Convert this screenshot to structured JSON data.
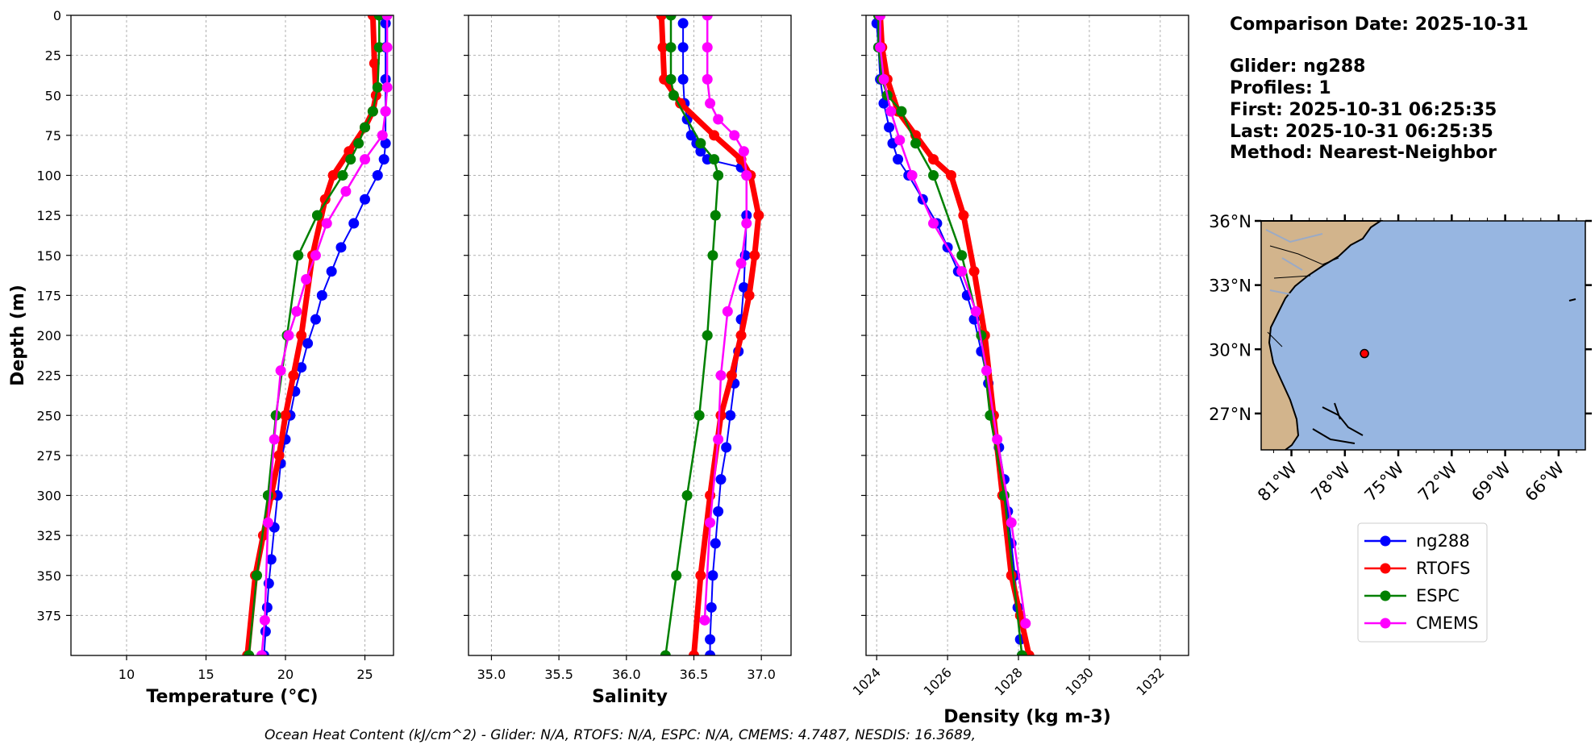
{
  "info": {
    "comparison_date": "Comparison Date: 2025-10-31",
    "glider": "Glider: ng288",
    "profiles": "Profiles: 1",
    "first": "First: 2025-10-31 06:25:35",
    "last": "Last: 2025-10-31 06:25:35",
    "method": "Method: Nearest-Neighbor"
  },
  "footer": "Ocean Heat Content (kJ/cm^2) - Glider: N/A,  RTOFS: N/A,  ESPC: N/A,  CMEMS: 4.7487,  NESDIS: 16.3689,",
  "colors": {
    "ng288": "#0000ff",
    "RTOFS": "#ff0000",
    "ESPC": "#008000",
    "CMEMS": "#ff00ff",
    "land": "#d2b48c",
    "ocean": "#97b6e1"
  },
  "legend": [
    "ng288",
    "RTOFS",
    "ESPC",
    "CMEMS"
  ],
  "map": {
    "lat_ticks": [
      "36°N",
      "33°N",
      "30°N",
      "27°N"
    ],
    "lon_ticks": [
      "81°W",
      "78°W",
      "75°W",
      "72°W",
      "69°W",
      "66°W"
    ],
    "glider_position": {
      "lon": -76.9,
      "lat": 29.8
    }
  },
  "chart_data": [
    {
      "type": "line",
      "xlabel": "Temperature (°C)",
      "ylabel": "Depth (m)",
      "xlim": [
        6.5,
        26.8
      ],
      "ylim": [
        400,
        0
      ],
      "xticks": [
        10,
        15,
        20,
        25
      ],
      "yticks": [
        0,
        25,
        50,
        75,
        100,
        125,
        150,
        175,
        200,
        225,
        250,
        275,
        300,
        325,
        350,
        375
      ],
      "grid": true,
      "series": [
        {
          "name": "ng288",
          "x": [
            26.3,
            26.3,
            26.3,
            26.3,
            26.3,
            26.2,
            25.8,
            25.0,
            24.3,
            23.5,
            22.9,
            22.3,
            21.9,
            21.4,
            21.0,
            20.6,
            20.3,
            20.0,
            19.7,
            19.5,
            19.3,
            19.1,
            18.95,
            18.85,
            18.75,
            18.65
          ],
          "y": [
            5,
            20,
            40,
            60,
            80,
            90,
            100,
            115,
            130,
            145,
            160,
            175,
            190,
            205,
            220,
            235,
            250,
            265,
            280,
            300,
            320,
            340,
            355,
            370,
            385,
            400
          ]
        },
        {
          "name": "RTOFS",
          "x": [
            25.5,
            25.6,
            25.7,
            25.5,
            25.0,
            24.0,
            23.0,
            22.5,
            21.7,
            21.0,
            20.5,
            20.0,
            19.6,
            19.1,
            18.6,
            18.1,
            17.6
          ],
          "y": [
            0,
            30,
            50,
            60,
            70,
            85,
            100,
            115,
            150,
            200,
            225,
            250,
            275,
            300,
            325,
            350,
            400
          ]
        },
        {
          "name": "ESPC",
          "x": [
            25.9,
            25.9,
            25.8,
            25.5,
            25.0,
            24.6,
            24.1,
            23.6,
            22.0,
            20.8,
            20.1,
            19.4,
            18.9,
            18.2,
            17.7
          ],
          "y": [
            0,
            20,
            45,
            60,
            70,
            80,
            90,
            100,
            125,
            150,
            200,
            250,
            300,
            350,
            400
          ]
        },
        {
          "name": "CMEMS",
          "x": [
            26.4,
            26.4,
            26.4,
            26.3,
            26.1,
            25.0,
            23.8,
            22.6,
            21.9,
            21.3,
            20.7,
            20.2,
            19.7,
            19.3,
            18.9,
            18.7,
            18.5
          ],
          "y": [
            0,
            20,
            45,
            60,
            75,
            90,
            110,
            130,
            150,
            165,
            185,
            200,
            222,
            265,
            317,
            378,
            400
          ]
        }
      ]
    },
    {
      "type": "line",
      "xlabel": "Salinity",
      "ylabel": "",
      "xlim": [
        34.83,
        37.22
      ],
      "ylim": [
        400,
        0
      ],
      "xticks": [
        35.0,
        35.5,
        36.0,
        36.5,
        37.0
      ],
      "grid": true,
      "series": [
        {
          "name": "ng288",
          "x": [
            36.42,
            36.42,
            36.42,
            36.43,
            36.45,
            36.48,
            36.52,
            36.55,
            36.6,
            36.85,
            36.89,
            36.89,
            36.88,
            36.87,
            36.85,
            36.83,
            36.8,
            36.77,
            36.74,
            36.7,
            36.68,
            36.66,
            36.64,
            36.63,
            36.62,
            36.62
          ],
          "y": [
            5,
            20,
            40,
            55,
            65,
            75,
            80,
            85,
            90,
            95,
            100,
            125,
            150,
            170,
            190,
            210,
            230,
            250,
            270,
            290,
            310,
            330,
            350,
            370,
            390,
            400
          ]
        },
        {
          "name": "RTOFS",
          "x": [
            36.26,
            36.27,
            36.28,
            36.4,
            36.65,
            36.85,
            36.92,
            36.98,
            36.95,
            36.91,
            36.85,
            36.78,
            36.7,
            36.62,
            36.55,
            36.5
          ],
          "y": [
            0,
            20,
            40,
            55,
            75,
            90,
            100,
            125,
            150,
            175,
            200,
            225,
            250,
            300,
            350,
            400
          ]
        },
        {
          "name": "ESPC",
          "x": [
            36.33,
            36.33,
            36.33,
            36.35,
            36.55,
            36.65,
            36.68,
            36.66,
            36.64,
            36.6,
            36.54,
            36.45,
            36.37,
            36.29
          ],
          "y": [
            0,
            20,
            40,
            50,
            80,
            90,
            100,
            125,
            150,
            200,
            250,
            300,
            350,
            400
          ]
        },
        {
          "name": "CMEMS",
          "x": [
            36.6,
            36.6,
            36.6,
            36.62,
            36.68,
            36.8,
            36.87,
            36.89,
            36.89,
            36.85,
            36.75,
            36.7,
            36.68,
            36.62,
            36.58
          ],
          "y": [
            0,
            20,
            40,
            55,
            65,
            75,
            85,
            100,
            130,
            155,
            185,
            225,
            265,
            317,
            378
          ]
        }
      ]
    },
    {
      "type": "line",
      "xlabel": "Density (kg m-3)",
      "ylabel": "",
      "xlim": [
        1023.7,
        1032.8
      ],
      "ylim": [
        400,
        0
      ],
      "xticks": [
        1024,
        1026,
        1028,
        1030,
        1032
      ],
      "grid": true,
      "series": [
        {
          "name": "ng288",
          "x": [
            1024.0,
            1024.05,
            1024.1,
            1024.2,
            1024.35,
            1024.45,
            1024.6,
            1024.9,
            1025.3,
            1025.7,
            1026.0,
            1026.3,
            1026.55,
            1026.75,
            1026.95,
            1027.15,
            1027.3,
            1027.45,
            1027.6,
            1027.7,
            1027.8,
            1027.9,
            1027.98,
            1028.05,
            1028.1
          ],
          "y": [
            5,
            20,
            40,
            55,
            70,
            80,
            90,
            100,
            115,
            130,
            145,
            160,
            175,
            190,
            210,
            230,
            250,
            270,
            290,
            310,
            330,
            350,
            370,
            390,
            400
          ]
        },
        {
          "name": "RTOFS",
          "x": [
            1024.1,
            1024.15,
            1024.3,
            1024.6,
            1025.1,
            1025.6,
            1026.1,
            1026.45,
            1026.75,
            1027.05,
            1027.3,
            1027.55,
            1027.8,
            1028.05,
            1028.3
          ],
          "y": [
            0,
            20,
            40,
            60,
            75,
            90,
            100,
            125,
            160,
            200,
            250,
            300,
            350,
            375,
            400
          ]
        },
        {
          "name": "ESPC",
          "x": [
            1024.05,
            1024.05,
            1024.15,
            1024.3,
            1024.7,
            1025.1,
            1025.6,
            1026.4,
            1026.95,
            1027.2,
            1027.6,
            1028.1
          ],
          "y": [
            0,
            20,
            40,
            50,
            60,
            80,
            100,
            150,
            200,
            250,
            300,
            400
          ]
        },
        {
          "name": "CMEMS",
          "x": [
            1024.1,
            1024.1,
            1024.2,
            1024.4,
            1024.65,
            1025.0,
            1025.6,
            1026.4,
            1026.8,
            1027.1,
            1027.4,
            1027.8,
            1028.2
          ],
          "y": [
            0,
            20,
            40,
            60,
            78,
            100,
            130,
            160,
            185,
            222,
            265,
            317,
            380
          ]
        }
      ]
    }
  ]
}
